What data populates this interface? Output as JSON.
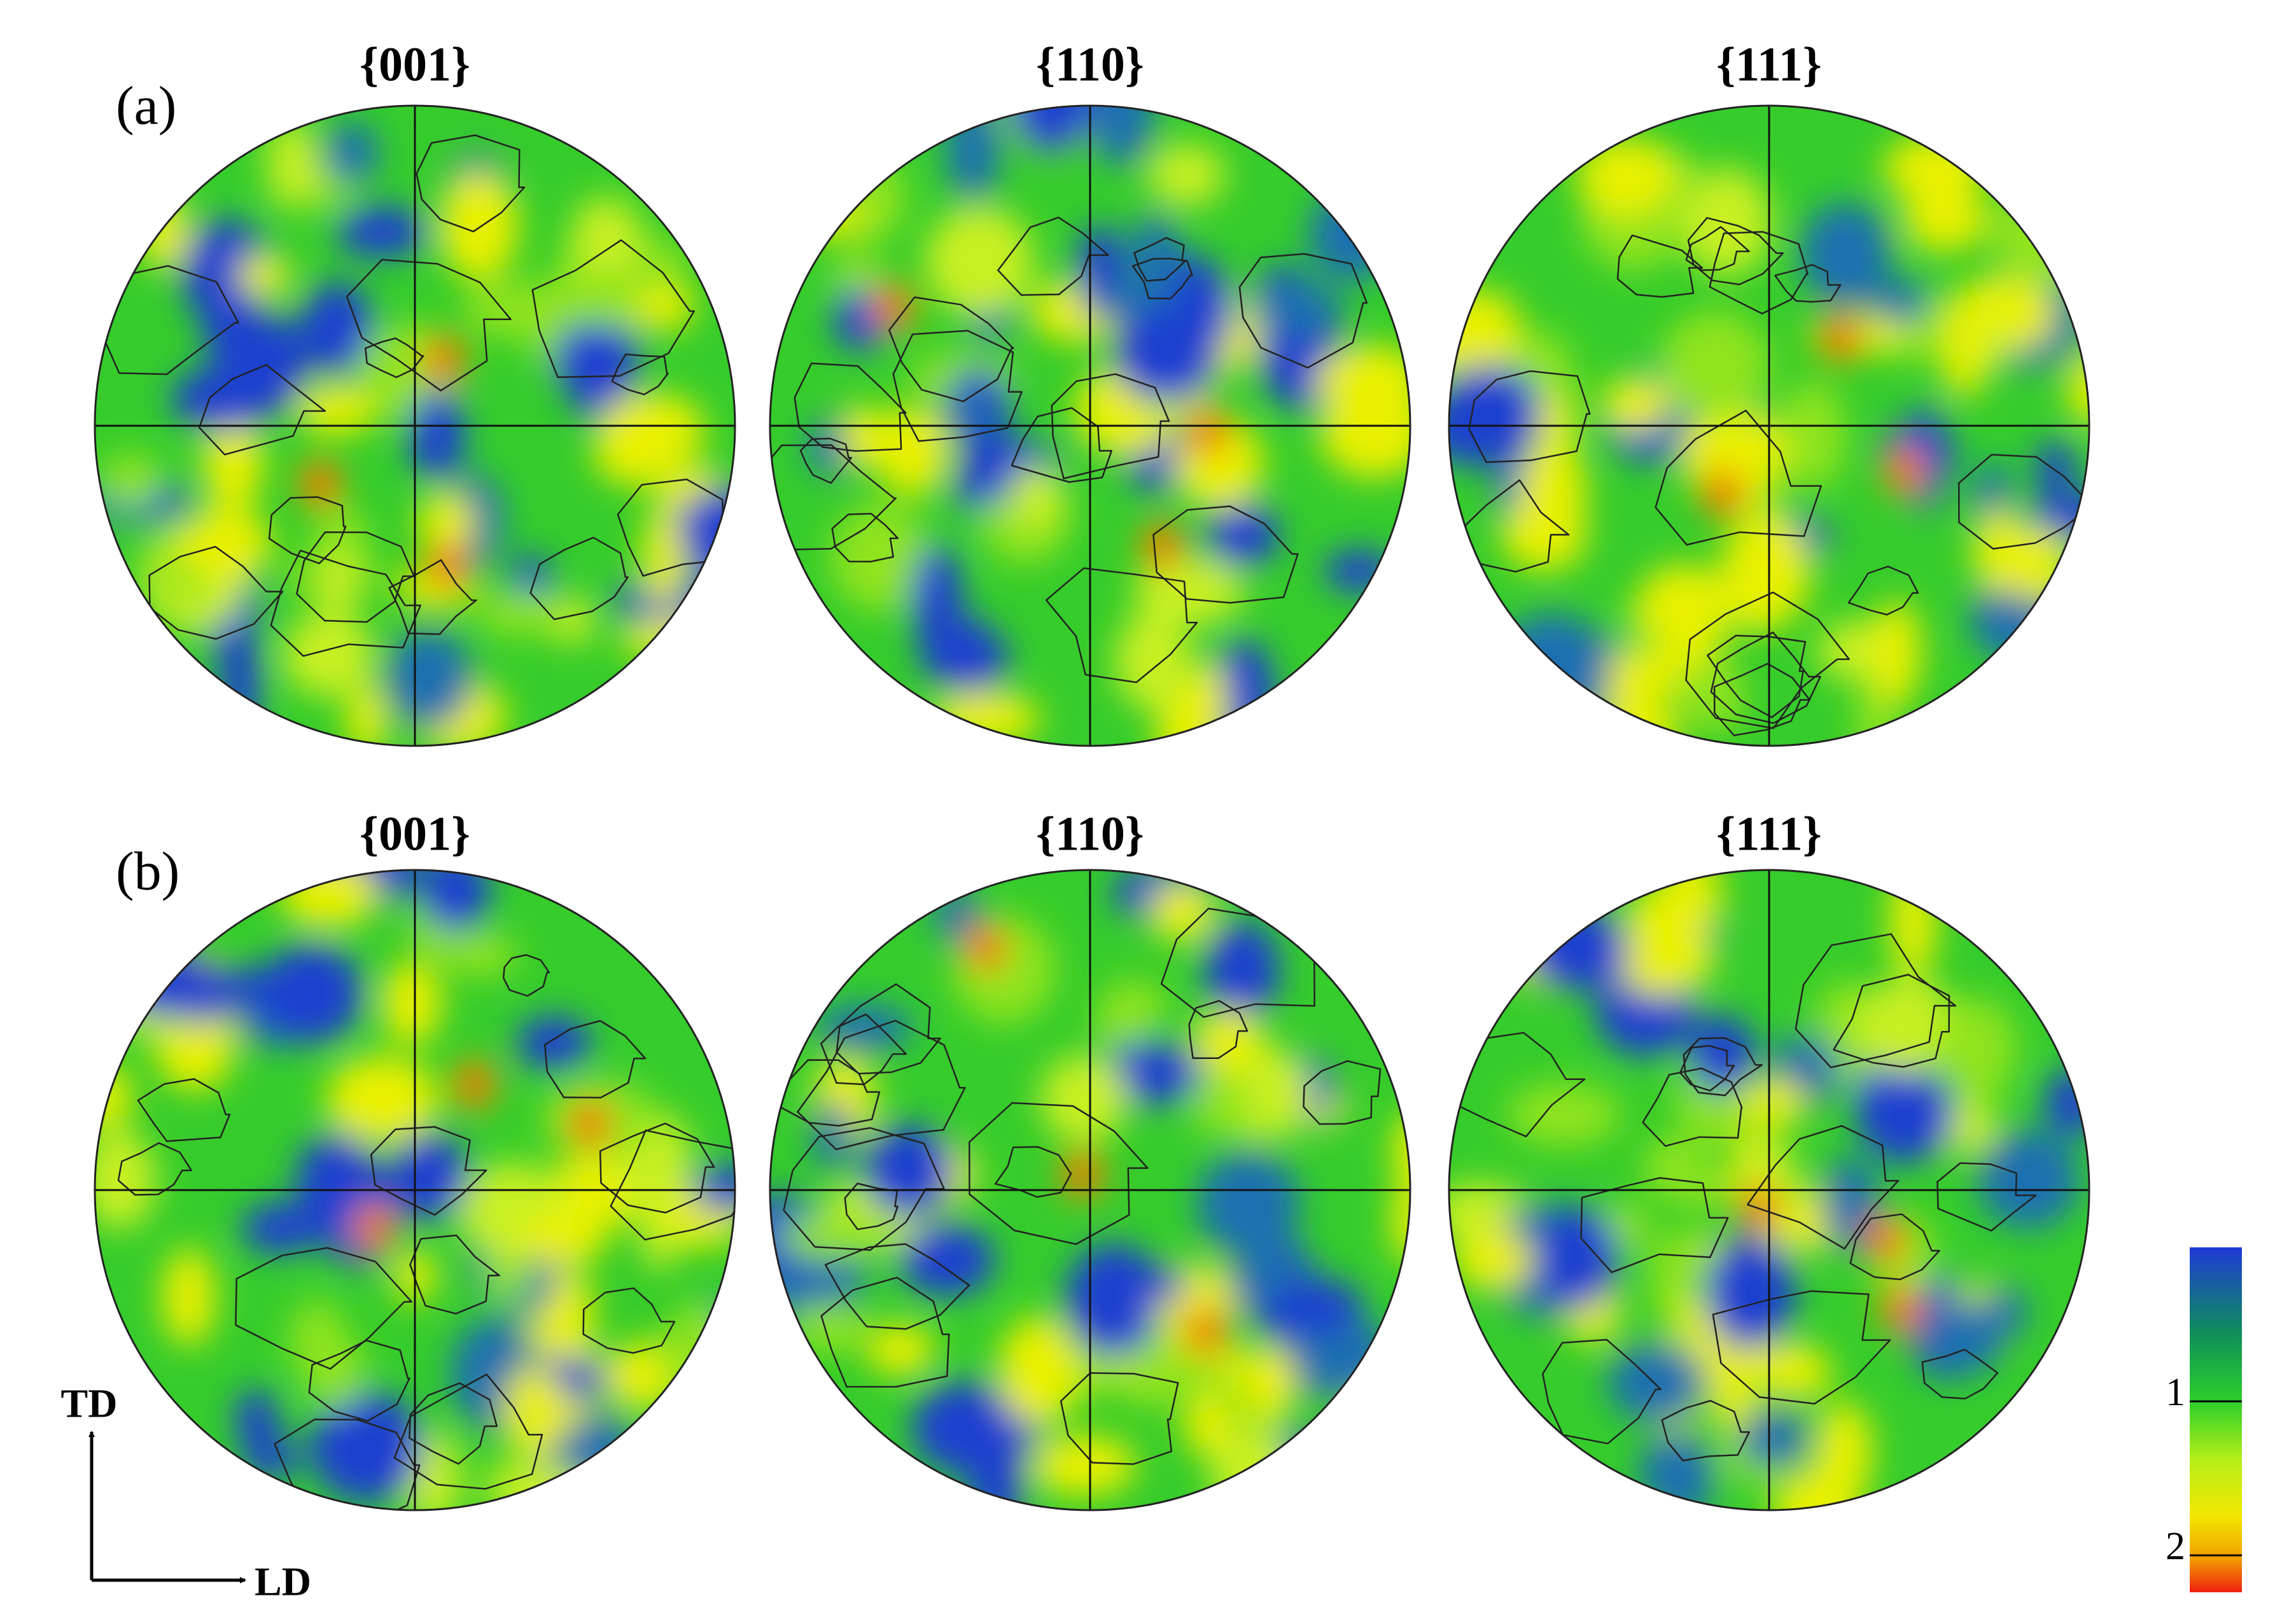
{
  "panels": [
    {
      "label": "(a)",
      "figures": [
        "{001}",
        "{110}",
        "{111}"
      ]
    },
    {
      "label": "(b)",
      "figures": [
        "{001}",
        "{110}",
        "{111}"
      ]
    }
  ],
  "axes": {
    "vertical": "TD",
    "horizontal": "LD"
  },
  "colorbar": {
    "ticks": [
      1,
      2
    ]
  }
}
